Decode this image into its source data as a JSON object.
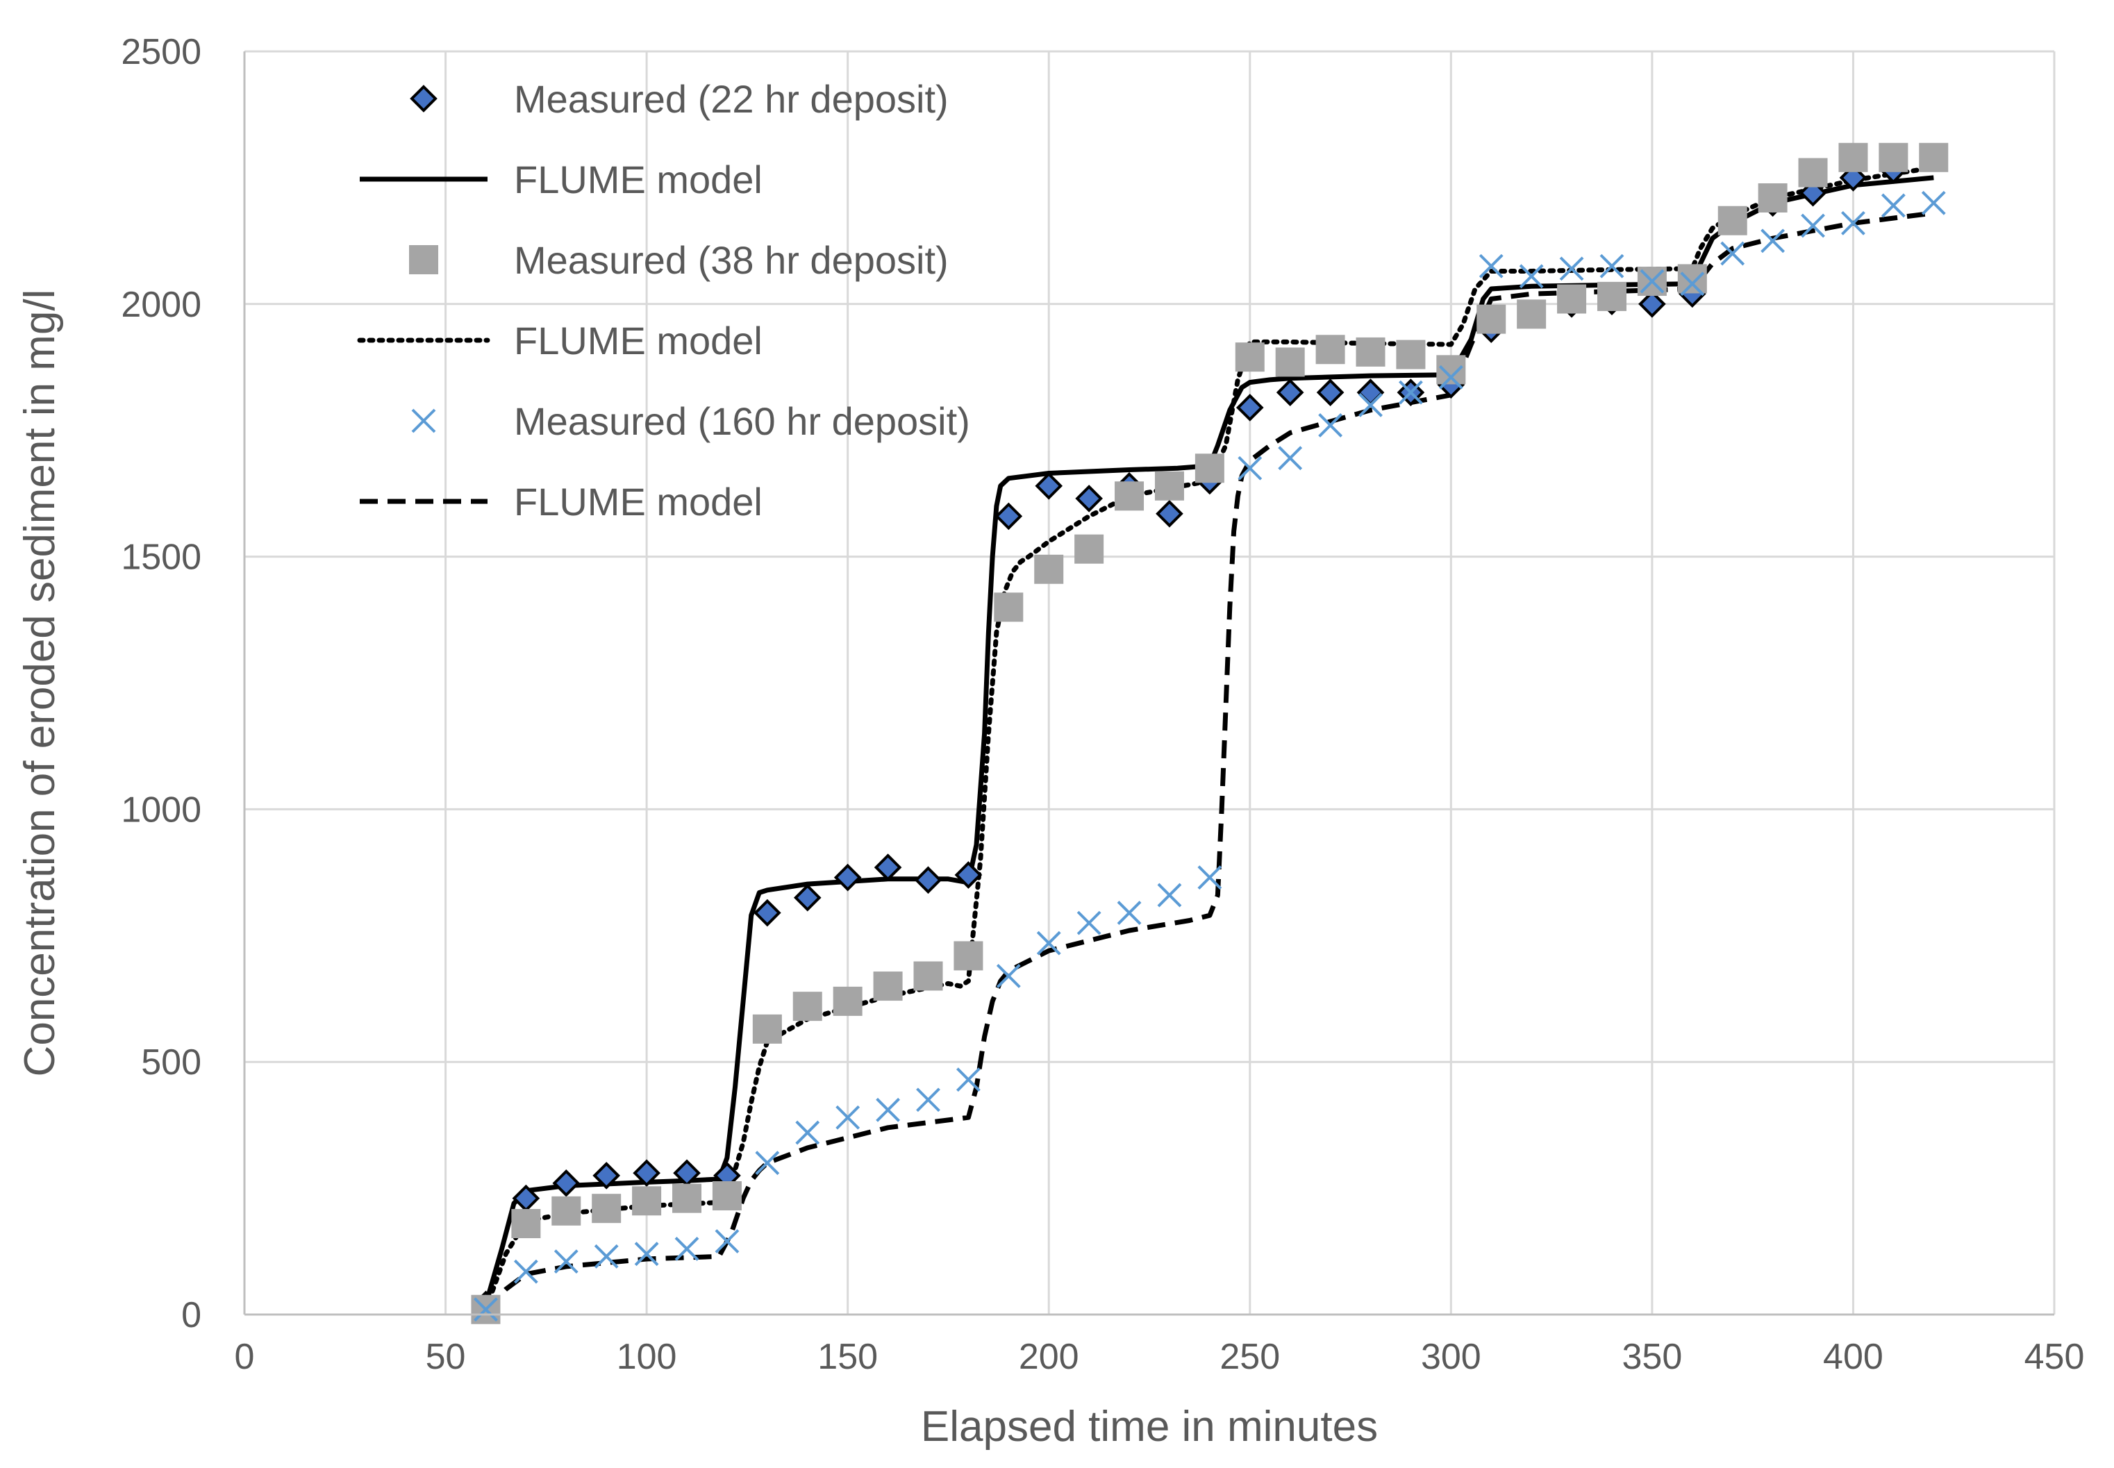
{
  "chart_data": {
    "type": "line",
    "title": "",
    "xlabel": "Elapsed time in minutes",
    "ylabel": "Concentration of eroded sediment in mg/l",
    "xlim": [
      0,
      450
    ],
    "ylim": [
      0,
      2500
    ],
    "xticks": [
      0,
      50,
      100,
      150,
      200,
      250,
      300,
      350,
      400,
      450
    ],
    "yticks": [
      0,
      500,
      1000,
      1500,
      2000,
      2500
    ],
    "grid": true,
    "legend_position": "top-left",
    "series": [
      {
        "name": "Measured (22 hr deposit)",
        "kind": "marker",
        "marker": "diamond",
        "color": "#4472c4",
        "x": [
          60,
          70,
          80,
          90,
          100,
          110,
          120,
          130,
          140,
          150,
          160,
          170,
          180,
          190,
          200,
          210,
          220,
          230,
          240,
          250,
          260,
          270,
          280,
          290,
          300,
          310,
          320,
          330,
          340,
          350,
          360,
          370,
          380,
          390,
          400,
          410,
          420
        ],
        "y": [
          20,
          230,
          260,
          275,
          280,
          280,
          275,
          795,
          825,
          865,
          885,
          860,
          870,
          1580,
          1640,
          1615,
          1640,
          1585,
          1650,
          1795,
          1825,
          1825,
          1825,
          1825,
          1840,
          1950,
          1980,
          2000,
          2005,
          2000,
          2020,
          2165,
          2200,
          2220,
          2250,
          2265,
          2290
        ]
      },
      {
        "name": "FLUME model",
        "kind": "line",
        "dash": "solid",
        "color": "#000000",
        "x": [
          60,
          64,
          67,
          70,
          80,
          100,
          110,
          118,
          120,
          122,
          124,
          126,
          128,
          130,
          140,
          160,
          175,
          180,
          182,
          184,
          185,
          186,
          187,
          188,
          190,
          200,
          220,
          232,
          240,
          242,
          245,
          248,
          250,
          255,
          260,
          280,
          300,
          305,
          308,
          310,
          320,
          340,
          360,
          362,
          365,
          370,
          380,
          400,
          420
        ],
        "y": [
          20,
          130,
          220,
          245,
          255,
          262,
          265,
          268,
          310,
          450,
          620,
          790,
          835,
          840,
          852,
          862,
          862,
          855,
          930,
          1150,
          1350,
          1500,
          1600,
          1640,
          1655,
          1665,
          1672,
          1675,
          1680,
          1720,
          1790,
          1835,
          1845,
          1850,
          1853,
          1858,
          1860,
          1930,
          2010,
          2030,
          2035,
          2038,
          2040,
          2080,
          2130,
          2160,
          2200,
          2235,
          2250
        ]
      },
      {
        "name": "Measured (38 hr deposit)",
        "kind": "marker",
        "marker": "square",
        "color": "#a5a5a5",
        "x": [
          60,
          70,
          80,
          90,
          100,
          110,
          120,
          130,
          140,
          150,
          160,
          170,
          180,
          190,
          200,
          210,
          220,
          230,
          240,
          250,
          260,
          270,
          280,
          290,
          300,
          310,
          320,
          330,
          340,
          350,
          360,
          370,
          380,
          390,
          400,
          410,
          420
        ],
        "y": [
          10,
          180,
          205,
          210,
          225,
          230,
          235,
          565,
          610,
          620,
          650,
          670,
          710,
          1400,
          1475,
          1515,
          1620,
          1640,
          1675,
          1895,
          1885,
          1910,
          1905,
          1900,
          1870,
          1970,
          1980,
          2010,
          2015,
          2045,
          2050,
          2165,
          2210,
          2260,
          2290,
          2290,
          2290
        ]
      },
      {
        "name": "FLUME model",
        "kind": "line",
        "dash": "dotted",
        "color": "#000000",
        "x": [
          60,
          65,
          70,
          80,
          100,
          118,
          121,
          124,
          126,
          128,
          130,
          140,
          160,
          175,
          178,
          180,
          183,
          185,
          187,
          189,
          191,
          193,
          195,
          200,
          210,
          220,
          240,
          244,
          247,
          250,
          260,
          280,
          300,
          303,
          306,
          310,
          320,
          340,
          360,
          362,
          365,
          370,
          380,
          400,
          420
        ],
        "y": [
          10,
          120,
          185,
          200,
          215,
          222,
          260,
          340,
          420,
          490,
          540,
          585,
          630,
          655,
          650,
          660,
          900,
          1150,
          1350,
          1430,
          1470,
          1490,
          1500,
          1530,
          1580,
          1620,
          1650,
          1720,
          1850,
          1925,
          1925,
          1922,
          1920,
          1960,
          2030,
          2065,
          2065,
          2068,
          2070,
          2110,
          2150,
          2175,
          2210,
          2245,
          2270
        ]
      },
      {
        "name": "Measured (160 hr deposit)",
        "kind": "marker",
        "marker": "x",
        "color": "#5b9bd5",
        "x": [
          60,
          70,
          80,
          90,
          100,
          110,
          120,
          130,
          140,
          150,
          160,
          170,
          180,
          190,
          200,
          210,
          220,
          230,
          240,
          250,
          260,
          270,
          280,
          290,
          300,
          310,
          320,
          330,
          340,
          350,
          360,
          370,
          380,
          390,
          400,
          410,
          420
        ],
        "y": [
          10,
          85,
          105,
          115,
          120,
          130,
          145,
          300,
          360,
          390,
          405,
          425,
          465,
          670,
          735,
          775,
          795,
          830,
          865,
          1675,
          1695,
          1760,
          1800,
          1825,
          1855,
          2075,
          2055,
          2070,
          2075,
          2045,
          2040,
          2100,
          2125,
          2155,
          2160,
          2195,
          2200
        ]
      },
      {
        "name": "FLUME model",
        "kind": "line",
        "dash": "dashed",
        "color": "#000000",
        "x": [
          60,
          65,
          70,
          80,
          100,
          118,
          121,
          124,
          126,
          128,
          130,
          140,
          160,
          175,
          180,
          182,
          184,
          186,
          188,
          190,
          200,
          220,
          235,
          240,
          242,
          243,
          244,
          245,
          246,
          247,
          248,
          250,
          255,
          260,
          280,
          300,
          305,
          310,
          320,
          340,
          360,
          365,
          370,
          380,
          400,
          420
        ],
        "y": [
          10,
          50,
          80,
          95,
          110,
          115,
          160,
          230,
          265,
          285,
          300,
          330,
          370,
          385,
          390,
          450,
          550,
          620,
          660,
          680,
          720,
          760,
          780,
          790,
          830,
          1000,
          1200,
          1400,
          1550,
          1620,
          1660,
          1690,
          1720,
          1745,
          1790,
          1820,
          1920,
          2010,
          2020,
          2025,
          2030,
          2080,
          2110,
          2130,
          2160,
          2180
        ]
      }
    ]
  }
}
